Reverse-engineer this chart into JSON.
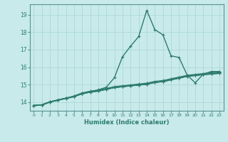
{
  "xlabel": "Humidex (Indice chaleur)",
  "background_color": "#c8eaea",
  "grid_color": "#a8d4d4",
  "line_color": "#2e7b6e",
  "xlim": [
    -0.5,
    23.5
  ],
  "ylim": [
    13.5,
    19.6
  ],
  "yticks": [
    14,
    15,
    16,
    17,
    18,
    19
  ],
  "xticks": [
    0,
    1,
    2,
    3,
    4,
    5,
    6,
    7,
    8,
    9,
    10,
    11,
    12,
    13,
    14,
    15,
    16,
    17,
    18,
    19,
    20,
    21,
    22,
    23
  ],
  "lines": [
    [
      13.8,
      13.82,
      14.0,
      14.1,
      14.2,
      14.3,
      14.5,
      14.6,
      14.7,
      14.85,
      15.4,
      16.6,
      17.2,
      17.75,
      19.25,
      18.15,
      17.85,
      16.65,
      16.55,
      15.55,
      15.1,
      15.6,
      15.75,
      15.75
    ],
    [
      13.8,
      13.82,
      14.0,
      14.1,
      14.22,
      14.35,
      14.52,
      14.62,
      14.68,
      14.78,
      14.88,
      14.93,
      14.98,
      15.03,
      15.08,
      15.18,
      15.23,
      15.33,
      15.43,
      15.53,
      15.58,
      15.63,
      15.68,
      15.73
    ],
    [
      13.8,
      13.84,
      14.0,
      14.12,
      14.22,
      14.32,
      14.48,
      14.58,
      14.63,
      14.73,
      14.83,
      14.88,
      14.93,
      14.98,
      15.03,
      15.13,
      15.18,
      15.28,
      15.38,
      15.48,
      15.53,
      15.58,
      15.63,
      15.68
    ],
    [
      13.8,
      13.84,
      14.01,
      14.12,
      14.22,
      14.32,
      14.47,
      14.57,
      14.63,
      14.73,
      14.83,
      14.88,
      14.93,
      14.97,
      15.02,
      15.12,
      15.17,
      15.27,
      15.37,
      15.47,
      15.52,
      15.57,
      15.61,
      15.65
    ],
    [
      13.8,
      13.84,
      14.01,
      14.12,
      14.22,
      14.32,
      14.47,
      14.57,
      14.63,
      14.73,
      14.83,
      14.88,
      14.93,
      14.97,
      15.02,
      15.12,
      15.17,
      15.27,
      15.37,
      15.47,
      15.52,
      15.57,
      15.6,
      15.64
    ]
  ]
}
